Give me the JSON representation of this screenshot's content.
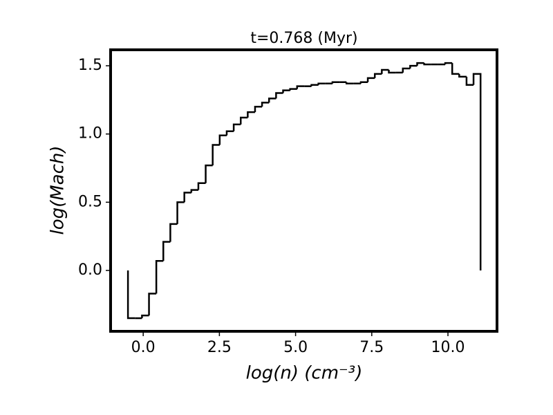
{
  "chart_data": {
    "type": "histogram-step",
    "title": "t=0.768 (Myr)",
    "xlabel": "log(n) (cm⁻³)",
    "ylabel": "log(Mach)",
    "bins": [
      -0.5,
      -0.27,
      -0.04,
      0.19,
      0.43,
      0.66,
      0.89,
      1.12,
      1.35,
      1.58,
      1.81,
      2.05,
      2.28,
      2.51,
      2.74,
      2.97,
      3.2,
      3.43,
      3.67,
      3.9,
      4.13,
      4.36,
      4.59,
      4.82,
      5.05,
      5.29,
      5.52,
      5.75,
      5.98,
      6.21,
      6.44,
      6.67,
      6.9,
      7.14,
      7.37,
      7.6,
      7.83,
      8.06,
      8.29,
      8.52,
      8.76,
      8.99,
      9.22,
      9.45,
      9.68,
      9.91,
      10.14,
      10.37,
      10.61,
      10.84,
      11.07
    ],
    "values": [
      -0.35,
      -0.35,
      -0.33,
      -0.17,
      0.07,
      0.21,
      0.34,
      0.5,
      0.57,
      0.59,
      0.64,
      0.77,
      0.92,
      0.99,
      1.02,
      1.07,
      1.12,
      1.16,
      1.2,
      1.23,
      1.26,
      1.3,
      1.32,
      1.33,
      1.35,
      1.35,
      1.36,
      1.37,
      1.37,
      1.38,
      1.38,
      1.37,
      1.37,
      1.38,
      1.41,
      1.44,
      1.47,
      1.45,
      1.45,
      1.48,
      1.5,
      1.52,
      1.51,
      1.51,
      1.51,
      1.52,
      1.44,
      1.42,
      1.36,
      1.44
    ],
    "color": "#000000",
    "xlim": [
      -1.07,
      11.61
    ],
    "ylim": [
      -0.446,
      1.617
    ],
    "xticks": [
      {
        "value": 0,
        "label": "0.0"
      },
      2.5,
      {
        "value": 5,
        "label": "5.0"
      },
      7.5,
      {
        "value": 10,
        "label": "10.0"
      }
    ],
    "yticks": [
      {
        "value": 0,
        "label": "0.0"
      },
      0.5,
      {
        "value": 1,
        "label": "1.0"
      },
      {
        "value": 1.5,
        "label": "1.5"
      }
    ]
  }
}
